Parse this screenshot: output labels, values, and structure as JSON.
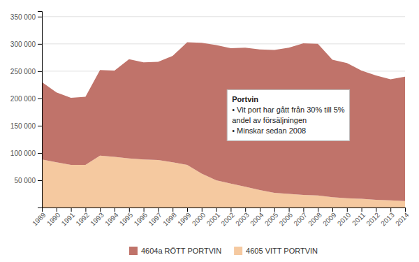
{
  "chart_data": {
    "type": "area",
    "stacked": true,
    "x": [
      1989,
      1990,
      1991,
      1992,
      1993,
      1994,
      1995,
      1996,
      1997,
      1998,
      1999,
      2000,
      2001,
      2002,
      2003,
      2004,
      2005,
      2006,
      2007,
      2008,
      2009,
      2010,
      2011,
      2012,
      2013,
      2014
    ],
    "series": [
      {
        "name": "4605 VITT PORTVIN",
        "color": "#f5c9a0",
        "values": [
          88000,
          83000,
          78000,
          78000,
          95000,
          93000,
          90000,
          88000,
          87000,
          83000,
          78000,
          62000,
          50000,
          44000,
          38000,
          32000,
          27000,
          25000,
          23000,
          22000,
          19000,
          17000,
          16000,
          14000,
          13000,
          12000
        ]
      },
      {
        "name": "4604a RÖTT PORTVIN",
        "color": "#c0736a",
        "values": [
          142000,
          128000,
          123000,
          125000,
          157000,
          158000,
          182000,
          178000,
          180000,
          195000,
          225000,
          240000,
          248000,
          248000,
          255000,
          258000,
          262000,
          268000,
          278000,
          278000,
          252000,
          248000,
          235000,
          228000,
          222000,
          228000
        ]
      }
    ],
    "xlim": [
      1989,
      2014
    ],
    "xticks": [
      1989,
      1990,
      1991,
      1992,
      1993,
      1994,
      1995,
      1996,
      1997,
      1998,
      1999,
      2000,
      2001,
      2002,
      2003,
      2004,
      2005,
      2006,
      2007,
      2008,
      2009,
      2010,
      2011,
      2012,
      2013,
      2014
    ],
    "ylim": [
      0,
      360000
    ],
    "yticks": [
      {
        "value": 50000,
        "label": "50 000"
      },
      {
        "value": 100000,
        "label": "100 000"
      },
      {
        "value": 150000,
        "label": "150 000"
      },
      {
        "value": 200000,
        "label": "200 000"
      },
      {
        "value": 250000,
        "label": "250 000"
      },
      {
        "value": 300000,
        "label": "300 000"
      },
      {
        "value": 350000,
        "label": "350 000"
      }
    ],
    "grid": "y",
    "legend": "bottom",
    "annotation": {
      "title": "Portvin",
      "lines": [
        "•  Vit port har gått från 30% till 5%",
        "andel av försäljningen",
        "•  Minskar sedan 2008"
      ]
    }
  }
}
